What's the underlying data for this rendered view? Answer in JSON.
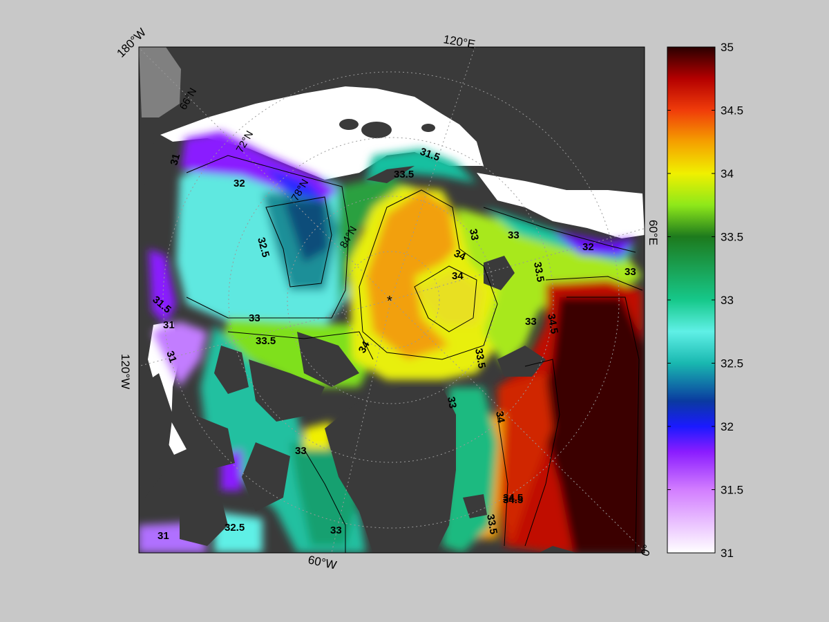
{
  "map": {
    "projection": "north-polar-stereographic",
    "variable": "sea surface salinity",
    "colors": {
      "background": "#c8c8c8",
      "land": "#3a3a3a",
      "ice": "#ffffff",
      "mask_gray": "#808080",
      "frame": "#000000",
      "contour": "#000000"
    },
    "longitude_labels": [
      {
        "id": "lon-180w",
        "text": "180°W"
      },
      {
        "id": "lon-120e",
        "text": "120°E"
      },
      {
        "id": "lon-60e",
        "text": "60°E"
      },
      {
        "id": "lon-120w",
        "text": "120°W"
      },
      {
        "id": "lon-60w",
        "text": "60°W"
      },
      {
        "id": "lon-0",
        "text": "0°"
      }
    ],
    "latitude_labels": [
      {
        "id": "lat-66n",
        "text": "66°N"
      },
      {
        "id": "lat-72n",
        "text": "72°N"
      },
      {
        "id": "lat-78n",
        "text": "78°N"
      },
      {
        "id": "lat-84n",
        "text": "84°N"
      }
    ],
    "contour_labels": [
      "31",
      "31.5",
      "32",
      "32.5",
      "33",
      "33.5",
      "34",
      "34.5",
      "31",
      "31.5",
      "33",
      "33",
      "33.5",
      "34",
      "34",
      "34.5",
      "31",
      "31",
      "32",
      "33",
      "33",
      "33.5",
      "34",
      "34.5",
      "33",
      "33",
      "33",
      "32.5",
      "33.5",
      "33.5"
    ],
    "pole_marker": "*"
  },
  "colorbar": {
    "min": 31,
    "max": 35,
    "ticks": [
      "31",
      "31.5",
      "32",
      "32.5",
      "33",
      "33.5",
      "34",
      "34.5",
      "35"
    ],
    "tick_values": [
      31,
      31.5,
      32,
      32.5,
      33,
      33.5,
      34,
      34.5,
      35
    ],
    "stops": [
      {
        "v": 31.0,
        "c": "#ffffff"
      },
      {
        "v": 31.5,
        "c": "#d27dff"
      },
      {
        "v": 31.8,
        "c": "#8a1cff"
      },
      {
        "v": 32.0,
        "c": "#1a1aff"
      },
      {
        "v": 32.2,
        "c": "#0a3aa0"
      },
      {
        "v": 32.5,
        "c": "#19b8b0"
      },
      {
        "v": 32.75,
        "c": "#5ff0e6"
      },
      {
        "v": 33.0,
        "c": "#16c88a"
      },
      {
        "v": 33.5,
        "c": "#1d7a1d"
      },
      {
        "v": 33.75,
        "c": "#8ee81a"
      },
      {
        "v": 34.0,
        "c": "#f0f000"
      },
      {
        "v": 34.25,
        "c": "#f5a000"
      },
      {
        "v": 34.5,
        "c": "#f03c0a"
      },
      {
        "v": 34.75,
        "c": "#b40000"
      },
      {
        "v": 35.0,
        "c": "#2a0000"
      }
    ]
  }
}
